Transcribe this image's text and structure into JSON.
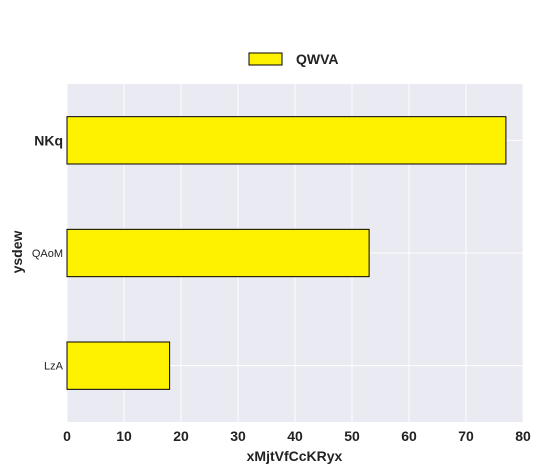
{
  "chart_data": {
    "type": "bar",
    "orientation": "horizontal",
    "categories": [
      "NKq",
      "QAoM",
      "LzA"
    ],
    "series": [
      {
        "name": "QWVA",
        "values": [
          77,
          53,
          18
        ],
        "color": "#fef200"
      }
    ],
    "xlabel": "xMjtVfCcKRyx",
    "ylabel": "ysdew",
    "xlim": [
      0,
      80
    ],
    "xticks": [
      "0",
      "10",
      "20",
      "30",
      "40",
      "50",
      "60",
      "70",
      "80"
    ],
    "grid": true,
    "legend_position": "top-center",
    "plot_background": "#eaeaf2"
  }
}
